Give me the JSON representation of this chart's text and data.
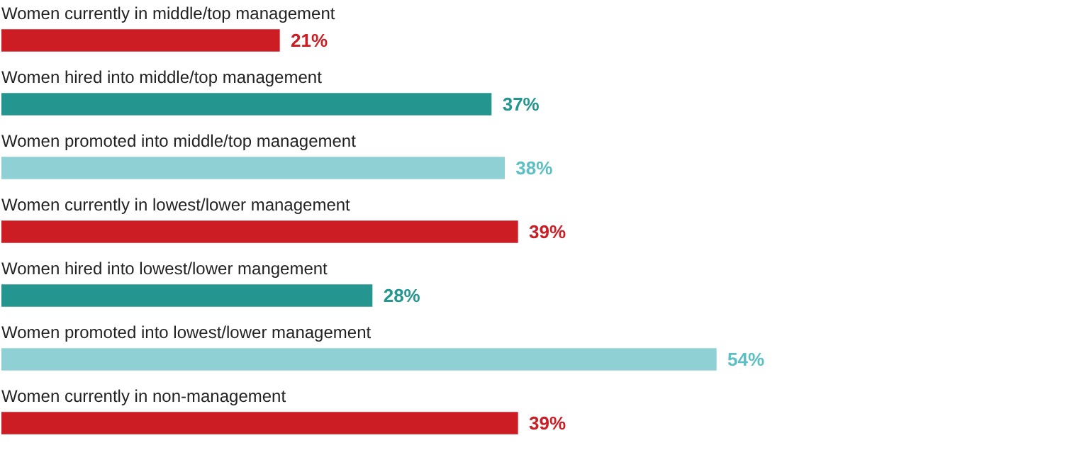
{
  "chart_data": {
    "type": "bar",
    "orientation": "horizontal",
    "data_labels": true,
    "value_labels": [
      "21%",
      "37%",
      "38%",
      "39%",
      "28%",
      "54%",
      "39%"
    ],
    "categories": [
      "Women currently in middle/top management",
      "Women hired into middle/top management",
      "Women promoted into middle/top management",
      "Women currently in lowest/lower management",
      "Women hired into lowest/lower mangement",
      "Women promoted into lowest/lower management",
      "Women currently in non-management"
    ],
    "values": [
      21,
      37,
      38,
      39,
      28,
      54,
      39
    ],
    "colors": [
      "#cc1c24",
      "#25968f",
      "#8fd0d4",
      "#cc1c24",
      "#25968f",
      "#8fd0d4",
      "#cc1c24"
    ],
    "legend": false
  }
}
